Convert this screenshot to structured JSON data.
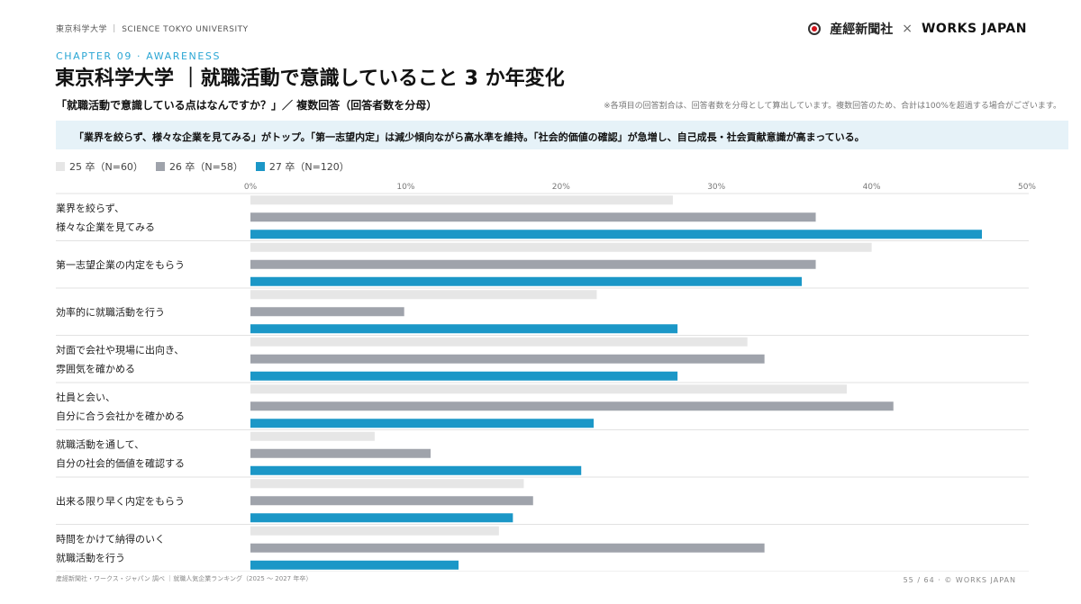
{
  "header": {
    "caption": "東京科学大学 ｜ SCIENCE TOKYO UNIVERSITY",
    "logo_sankei": "産經新聞社",
    "logo_times": "×",
    "logo_works": "WORKS JAPAN"
  },
  "chapter": "CHAPTER 09 · AWARENESS",
  "title": "東京科学大学 ｜就職活動で意識していること 3 か年変化",
  "subtitle": "「就職活動で意識している点はなんですか？」／ 複数回答（回答者数を分母）",
  "note": "※各項目の回答割合は、回答者数を分母として算出しています。複数回答のため、合計は100%を超過する場合がございます。",
  "banner": "「業界を絞らず、様々な企業を見てみる」がトップ。「第一志望内定」は減少傾向ながら高水準を維持。「社会的価値の確認」が急増し、自己成長・社会貢献意識が高まっている。",
  "colors": {
    "series25": "#e6e6e6",
    "series26": "#9fa3ab",
    "series27": "#1b97c7",
    "accent": "#2aa6d4",
    "banner_bg": "#e6f2f8"
  },
  "chart_data": {
    "type": "bar",
    "orientation": "horizontal",
    "categories": [
      "業界を絞らず、\n様々な企業を見てみる",
      "第一志望企業の内定をもらう",
      "効率的に就職活動を行う",
      "対面で会社や現場に出向き、\n雰囲気を確かめる",
      "社員と会い、\n自分に合う会社かを確かめる",
      "就職活動を通して、\n自分の社会的価値を確認する",
      "出来る限り早く内定をもらう",
      "時間をかけて納得のいく\n就職活動を行う"
    ],
    "series": [
      {
        "name": "25 卒（N=60）",
        "values": [
          27.2,
          40.0,
          22.3,
          32.0,
          38.4,
          8.0,
          17.6,
          16.0
        ]
      },
      {
        "name": "26 卒（N=58）",
        "values": [
          36.4,
          36.4,
          9.9,
          33.1,
          41.4,
          11.6,
          18.2,
          33.1
        ]
      },
      {
        "name": "27 卒（N=120）",
        "values": [
          47.1,
          35.5,
          27.5,
          27.5,
          22.1,
          21.3,
          16.9,
          13.4
        ]
      }
    ],
    "xlim": [
      0,
      50
    ],
    "xticks": [
      "0%",
      "10%",
      "20%",
      "30%",
      "40%",
      "50%"
    ],
    "xlabel": "",
    "ylabel": "",
    "grid": false,
    "legend": "top-left"
  },
  "footer": {
    "source": "産經新聞社・ワークス・ジャパン 調べ ｜就職人気企業ランキング（2025 〜 2027 年卒）",
    "page": "55 / 64 · © WORKS JAPAN"
  }
}
